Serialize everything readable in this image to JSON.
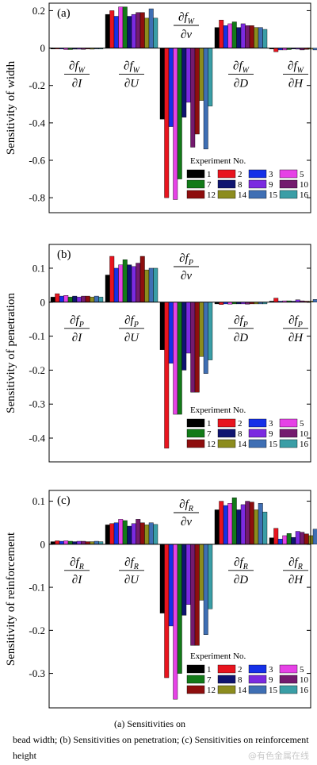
{
  "colors": [
    "#000000",
    "#e8141e",
    "#1530e8",
    "#e642e6",
    "#127a18",
    "#0f1470",
    "#7b2ae0",
    "#741a6e",
    "#8e0e0e",
    "#8c8c1e",
    "#3f6fb4",
    "#3a9ea6"
  ],
  "chart_data": [
    {
      "type": "bar",
      "panel_label": "(a)",
      "ylabel": "Sensitivity of width",
      "ylim": [
        -0.88,
        0.24
      ],
      "yticks": [
        0.2,
        0,
        -0.2,
        -0.4,
        -0.6,
        -0.8
      ],
      "ytick_labels": [
        "0.2",
        "0",
        "-0.2",
        "-0.4",
        "-0.6",
        "-0.8"
      ],
      "group_labels": [
        {
          "num": "∂f",
          "sub": "W",
          "den": "∂I"
        },
        {
          "num": "∂f",
          "sub": "W",
          "den": "∂U"
        },
        {
          "num": "∂f",
          "sub": "W",
          "den": "∂v"
        },
        {
          "num": "∂f",
          "sub": "W",
          "den": "∂D"
        },
        {
          "num": "∂f",
          "sub": "W",
          "den": "∂H"
        }
      ],
      "legend_title": "Experiment No.",
      "legend_entries": [
        "1",
        "2",
        "3",
        "5",
        "7",
        "8",
        "9",
        "10",
        "12",
        "14",
        "15",
        "16"
      ],
      "categories": [
        "I",
        "U",
        "v",
        "D",
        "H"
      ],
      "series": [
        {
          "name": "1",
          "values": [
            -0.005,
            0.18,
            -0.38,
            0.11,
            -0.005
          ]
        },
        {
          "name": "2",
          "values": [
            -0.005,
            0.2,
            -0.8,
            0.15,
            -0.02
          ]
        },
        {
          "name": "3",
          "values": [
            -0.005,
            0.17,
            -0.42,
            0.12,
            -0.01
          ]
        },
        {
          "name": "5",
          "values": [
            -0.008,
            0.22,
            -0.81,
            0.13,
            -0.01
          ]
        },
        {
          "name": "7",
          "values": [
            -0.008,
            0.22,
            -0.7,
            0.14,
            -0.008
          ]
        },
        {
          "name": "8",
          "values": [
            -0.006,
            0.17,
            -0.37,
            0.11,
            -0.005
          ]
        },
        {
          "name": "9",
          "values": [
            -0.006,
            0.18,
            -0.29,
            0.13,
            -0.006
          ]
        },
        {
          "name": "10",
          "values": [
            -0.007,
            0.19,
            -0.53,
            0.12,
            -0.01
          ]
        },
        {
          "name": "12",
          "values": [
            -0.005,
            0.19,
            -0.46,
            0.12,
            -0.007
          ]
        },
        {
          "name": "14",
          "values": [
            -0.006,
            0.16,
            -0.28,
            0.11,
            -0.006
          ]
        },
        {
          "name": "15",
          "values": [
            -0.005,
            0.21,
            -0.54,
            0.11,
            -0.01
          ]
        },
        {
          "name": "16",
          "values": [
            -0.005,
            0.16,
            -0.31,
            0.1,
            -0.005
          ]
        }
      ]
    },
    {
      "type": "bar",
      "panel_label": "(b)",
      "ylabel": "Sensitivity of penetration",
      "ylim": [
        -0.47,
        0.17
      ],
      "yticks": [
        0.1,
        0,
        -0.1,
        -0.2,
        -0.3,
        -0.4
      ],
      "ytick_labels": [
        "0.1",
        "0",
        "-0.1",
        "-0.2",
        "-0.3",
        "-0.4"
      ],
      "group_labels": [
        {
          "num": "∂f",
          "sub": "P",
          "den": "∂I"
        },
        {
          "num": "∂f",
          "sub": "P",
          "den": "∂U"
        },
        {
          "num": "∂f",
          "sub": "P",
          "den": "∂v"
        },
        {
          "num": "∂f",
          "sub": "P",
          "den": "∂D"
        },
        {
          "num": "∂f",
          "sub": "P",
          "den": "∂H"
        }
      ],
      "legend_title": "Experiment No.",
      "legend_entries": [
        "1",
        "2",
        "3",
        "5",
        "7",
        "8",
        "9",
        "10",
        "12",
        "14",
        "15",
        "16"
      ],
      "categories": [
        "I",
        "U",
        "v",
        "D",
        "H"
      ],
      "series": [
        {
          "name": "1",
          "values": [
            0.015,
            0.08,
            -0.14,
            -0.005,
            0.003
          ]
        },
        {
          "name": "2",
          "values": [
            0.025,
            0.135,
            -0.43,
            -0.007,
            0.012
          ]
        },
        {
          "name": "3",
          "values": [
            0.018,
            0.1,
            -0.18,
            -0.005,
            0.003
          ]
        },
        {
          "name": "5",
          "values": [
            0.02,
            0.11,
            -0.33,
            -0.006,
            0.004
          ]
        },
        {
          "name": "7",
          "values": [
            0.015,
            0.125,
            -0.33,
            -0.005,
            0.004
          ]
        },
        {
          "name": "8",
          "values": [
            0.018,
            0.11,
            -0.2,
            -0.005,
            0.003
          ]
        },
        {
          "name": "9",
          "values": [
            0.015,
            0.105,
            -0.15,
            -0.005,
            0.007
          ]
        },
        {
          "name": "10",
          "values": [
            0.018,
            0.115,
            -0.265,
            -0.006,
            0.004
          ]
        },
        {
          "name": "12",
          "values": [
            0.018,
            0.135,
            -0.265,
            -0.005,
            0.003
          ]
        },
        {
          "name": "14",
          "values": [
            0.015,
            0.095,
            -0.16,
            -0.005,
            0.003
          ]
        },
        {
          "name": "15",
          "values": [
            0.018,
            0.1,
            -0.21,
            -0.005,
            0.008
          ]
        },
        {
          "name": "16",
          "values": [
            0.015,
            0.1,
            -0.17,
            -0.005,
            0.003
          ]
        }
      ]
    },
    {
      "type": "bar",
      "panel_label": "(c)",
      "ylabel": "Sensitivity of reinforcement",
      "ylim": [
        -0.38,
        0.125
      ],
      "yticks": [
        0.1,
        0,
        -0.1,
        -0.2,
        -0.3
      ],
      "ytick_labels": [
        "0.1",
        "0",
        "-0.1",
        "-0.2",
        "-0.3"
      ],
      "group_labels": [
        {
          "num": "∂f",
          "sub": "R",
          "den": "∂I"
        },
        {
          "num": "∂f",
          "sub": "R",
          "den": "∂U"
        },
        {
          "num": "∂f",
          "sub": "R",
          "den": "∂v"
        },
        {
          "num": "∂f",
          "sub": "R",
          "den": "∂D"
        },
        {
          "num": "∂f",
          "sub": "R",
          "den": "∂H"
        }
      ],
      "legend_title": "Experiment No.",
      "legend_entries": [
        "1",
        "2",
        "3",
        "5",
        "7",
        "8",
        "9",
        "10",
        "12",
        "14",
        "15",
        "16"
      ],
      "categories": [
        "I",
        "U",
        "v",
        "D",
        "H"
      ],
      "series": [
        {
          "name": "1",
          "values": [
            0.006,
            0.045,
            -0.16,
            0.08,
            0.015
          ]
        },
        {
          "name": "2",
          "values": [
            0.008,
            0.048,
            -0.31,
            0.1,
            0.037
          ]
        },
        {
          "name": "3",
          "values": [
            0.007,
            0.05,
            -0.19,
            0.09,
            0.012
          ]
        },
        {
          "name": "5",
          "values": [
            0.008,
            0.058,
            -0.36,
            0.095,
            0.02
          ]
        },
        {
          "name": "7",
          "values": [
            0.007,
            0.055,
            -0.3,
            0.108,
            0.025
          ]
        },
        {
          "name": "8",
          "values": [
            0.006,
            0.042,
            -0.165,
            0.08,
            0.016
          ]
        },
        {
          "name": "9",
          "values": [
            0.007,
            0.048,
            -0.14,
            0.092,
            0.03
          ]
        },
        {
          "name": "10",
          "values": [
            0.007,
            0.058,
            -0.235,
            0.1,
            0.028
          ]
        },
        {
          "name": "12",
          "values": [
            0.006,
            0.05,
            -0.235,
            0.098,
            0.024
          ]
        },
        {
          "name": "14",
          "values": [
            0.006,
            0.045,
            -0.13,
            0.08,
            0.02
          ]
        },
        {
          "name": "15",
          "values": [
            0.007,
            0.05,
            -0.21,
            0.095,
            0.035
          ]
        },
        {
          "name": "16",
          "values": [
            0.006,
            0.046,
            -0.15,
            0.075,
            0.018
          ]
        }
      ]
    }
  ],
  "caption": {
    "line1": "(a) Sensitivities on",
    "line2": "bead width; (b) Sensitivities on penetration; (c) Sensitivities on reinforcement height"
  },
  "watermark": "@有色金属在线"
}
